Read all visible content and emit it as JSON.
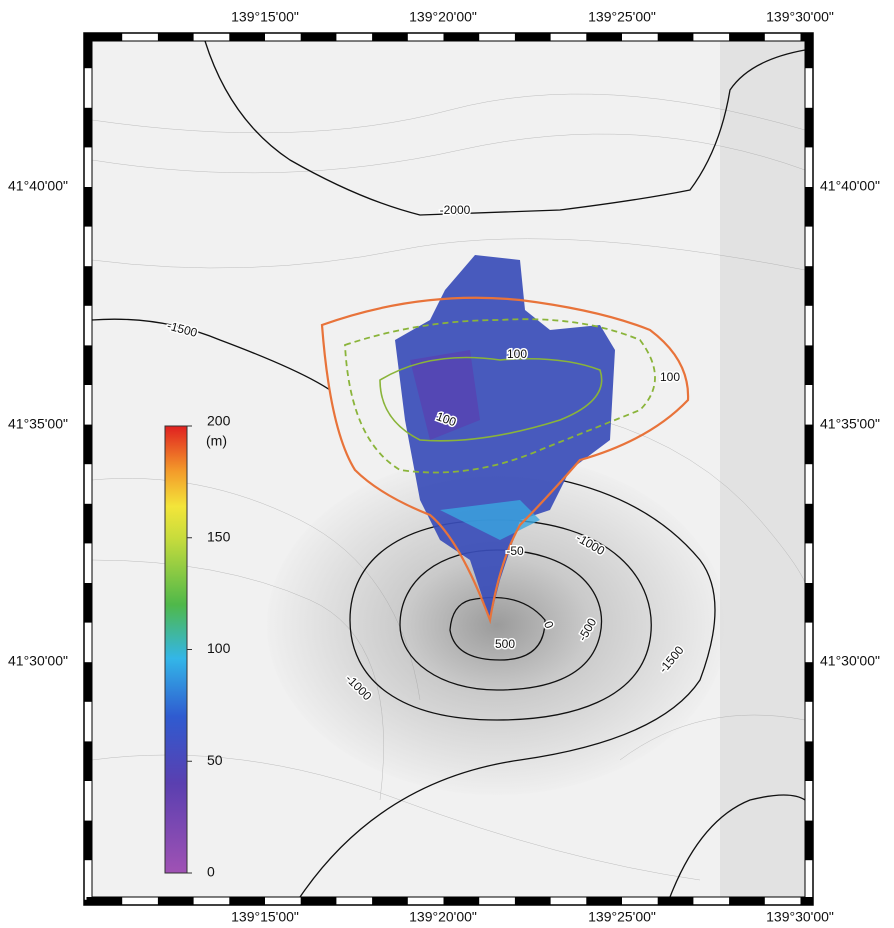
{
  "map": {
    "lon_labels": [
      "139°15'00\"",
      "139°20'00\"",
      "139°25'00\"",
      "139°30'00\""
    ],
    "lat_labels": [
      "41°40'00\"",
      "41°35'00\"",
      "41°30'00\""
    ],
    "colorbar": {
      "unit": "(m)",
      "lim": [
        0,
        200
      ],
      "ticks": [
        0,
        50,
        100,
        150,
        200
      ]
    },
    "contour_labels": [
      "-2000",
      "-1500",
      "-1000",
      "-50",
      "0",
      "500",
      "-500",
      "-1000",
      "-1500",
      "100",
      "100",
      "100"
    ]
  }
}
